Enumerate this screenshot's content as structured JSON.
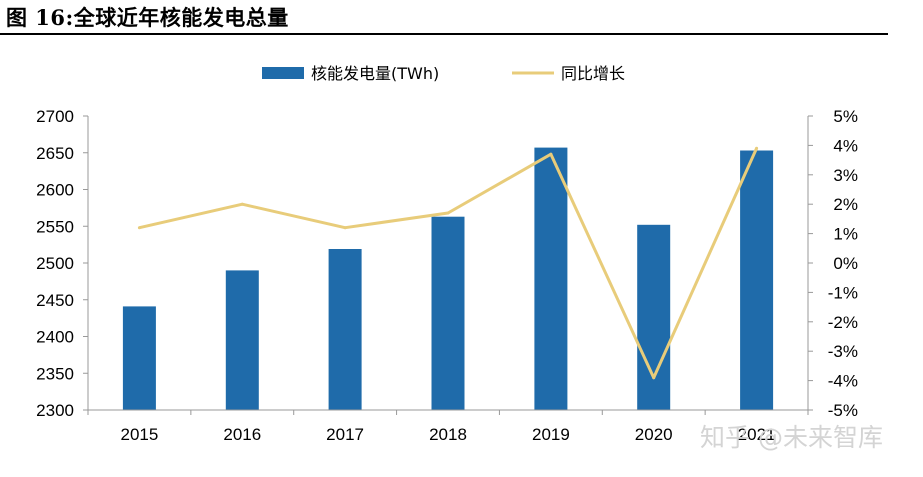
{
  "figure_title": "图 16:全球近年核能发电总量",
  "watermark": "知乎 @未来智库",
  "colors": {
    "bars": "#1F6BAA",
    "line": "#E8CC7A",
    "axis": "#999999"
  },
  "chart_data": {
    "type": "bar",
    "categories": [
      "2015",
      "2016",
      "2017",
      "2018",
      "2019",
      "2020",
      "2021"
    ],
    "series": [
      {
        "name": "核能发电量(TWh)",
        "type": "bar",
        "axis": "left",
        "values": [
          2441,
          2490,
          2519,
          2563,
          2657,
          2552,
          2653
        ]
      },
      {
        "name": "同比增长",
        "type": "line",
        "axis": "right",
        "values": [
          1.2,
          2.0,
          1.2,
          1.7,
          3.7,
          -3.9,
          3.9
        ]
      }
    ],
    "y_left": {
      "lim": [
        2300,
        2700
      ],
      "ticks": [
        "2300",
        "2350",
        "2400",
        "2450",
        "2500",
        "2550",
        "2600",
        "2650",
        "2700"
      ]
    },
    "y_right": {
      "lim": [
        -5,
        5
      ],
      "ticks": [
        "-5%",
        "-4%",
        "-3%",
        "-2%",
        "-1%",
        "0%",
        "1%",
        "2%",
        "3%",
        "4%",
        "5%"
      ]
    },
    "legend": "top-center",
    "grid": false
  }
}
